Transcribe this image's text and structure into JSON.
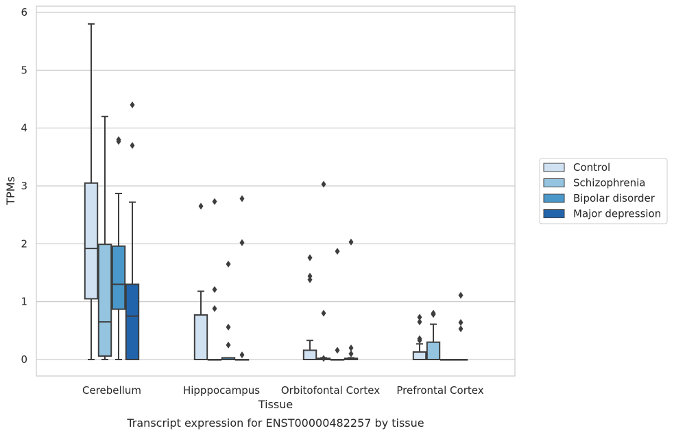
{
  "chart_data": {
    "type": "box",
    "title": "",
    "caption": "Transcript expression for ENST00000482257 by tissue",
    "xlabel": "Tissue",
    "ylabel": "TPMs",
    "ylim": [
      -0.28,
      6.1
    ],
    "yticks": [
      0,
      1,
      2,
      3,
      4,
      5,
      6
    ],
    "ytick_labels": [
      "0",
      "1",
      "2",
      "3",
      "4",
      "5",
      "6"
    ],
    "grid": "horizontal",
    "legend_position": "right",
    "categories": [
      "Cerebellum",
      "Hipppocampus",
      "Orbitofontal Cortex",
      "Prefrontal Cortex"
    ],
    "series": [
      {
        "name": "Control",
        "color": "#d0e1f2",
        "boxes": [
          {
            "whisker_low": 0,
            "q1": 1.05,
            "median": 1.92,
            "q3": 3.05,
            "whisker_high": 5.8,
            "outliers": []
          },
          {
            "whisker_low": 0,
            "q1": 0,
            "median": 0,
            "q3": 0.77,
            "whisker_high": 1.18,
            "outliers": [
              2.65
            ]
          },
          {
            "whisker_low": 0,
            "q1": 0,
            "median": 0,
            "q3": 0.16,
            "whisker_high": 0.33,
            "outliers": [
              1.38,
              1.44,
              1.76
            ]
          },
          {
            "whisker_low": 0,
            "q1": 0,
            "median": 0,
            "q3": 0.13,
            "whisker_high": 0.27,
            "outliers": [
              0.33,
              0.36,
              0.65,
              0.73
            ]
          }
        ]
      },
      {
        "name": "Schizophrenia",
        "color": "#94c4df",
        "boxes": [
          {
            "whisker_low": 0,
            "q1": 0.06,
            "median": 0.65,
            "q3": 1.99,
            "whisker_high": 4.2,
            "outliers": []
          },
          {
            "whisker_low": 0,
            "q1": 0,
            "median": 0,
            "q3": 0,
            "whisker_high": 0,
            "outliers": [
              0.88,
              1.21,
              2.73
            ]
          },
          {
            "whisker_low": 0,
            "q1": 0,
            "median": 0,
            "q3": 0.02,
            "whisker_high": 0.03,
            "outliers": [
              0.02,
              0.8,
              3.03
            ]
          },
          {
            "whisker_low": 0,
            "q1": 0,
            "median": 0,
            "q3": 0.3,
            "whisker_high": 0.61,
            "outliers": [
              0.78,
              0.8
            ]
          }
        ]
      },
      {
        "name": "Bipolar disorder",
        "color": "#4a98c9",
        "boxes": [
          {
            "whisker_low": 0,
            "q1": 0.87,
            "median": 1.3,
            "q3": 1.96,
            "whisker_high": 2.87,
            "outliers": [
              3.77,
              3.8
            ]
          },
          {
            "whisker_low": 0,
            "q1": 0,
            "median": 0,
            "q3": 0.03,
            "whisker_high": 0.03,
            "outliers": [
              0.25,
              0.56,
              1.65
            ]
          },
          {
            "whisker_low": 0,
            "q1": 0,
            "median": 0,
            "q3": 0,
            "whisker_high": 0,
            "outliers": [
              0.16,
              1.87
            ]
          },
          {
            "whisker_low": 0,
            "q1": 0,
            "median": 0,
            "q3": 0,
            "whisker_high": 0,
            "outliers": []
          }
        ]
      },
      {
        "name": "Major depression",
        "color": "#2164ab",
        "boxes": [
          {
            "whisker_low": 0,
            "q1": 0,
            "median": 0.75,
            "q3": 1.3,
            "whisker_high": 2.72,
            "outliers": [
              3.7,
              4.4
            ]
          },
          {
            "whisker_low": 0,
            "q1": 0,
            "median": 0,
            "q3": 0,
            "whisker_high": 0,
            "outliers": [
              0.08,
              2.02,
              2.78
            ]
          },
          {
            "whisker_low": 0,
            "q1": 0,
            "median": 0,
            "q3": 0.02,
            "whisker_high": 0.03,
            "outliers": [
              0.1,
              0.2,
              2.03
            ]
          },
          {
            "whisker_low": 0,
            "q1": 0,
            "median": 0,
            "q3": 0,
            "whisker_high": 0,
            "outliers": [
              0.53,
              0.64,
              1.11
            ]
          }
        ]
      }
    ]
  }
}
